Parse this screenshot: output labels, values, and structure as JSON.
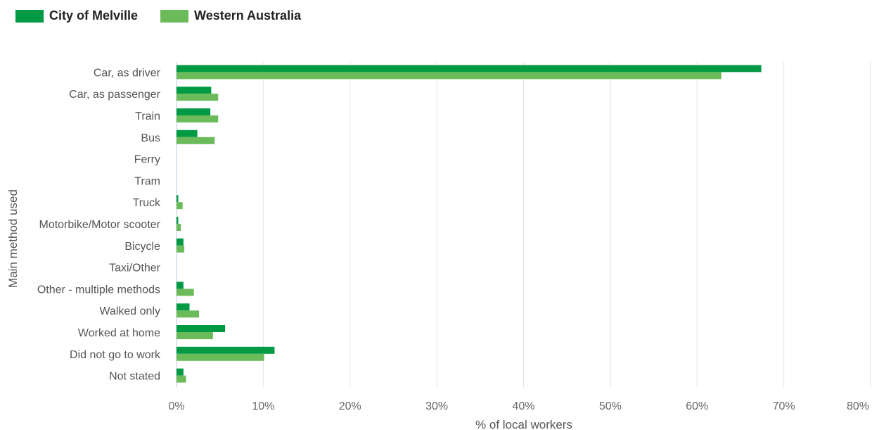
{
  "legend": {
    "items": [
      {
        "label": "City of Melville",
        "color": "#009a44"
      },
      {
        "label": "Western Australia",
        "color": "#6cbb5a"
      }
    ]
  },
  "chart_data": {
    "type": "bar",
    "orientation": "horizontal",
    "categories": [
      "Car, as driver",
      "Car, as passenger",
      "Train",
      "Bus",
      "Ferry",
      "Tram",
      "Truck",
      "Motorbike/Motor scooter",
      "Bicycle",
      "Taxi/Other",
      "Other - multiple methods",
      "Walked only",
      "Worked at home",
      "Did not go to work",
      "Not stated"
    ],
    "series": [
      {
        "name": "City of Melville",
        "color": "#009a44",
        "values": [
          67.4,
          4.0,
          3.9,
          2.4,
          0.0,
          0.0,
          0.2,
          0.2,
          0.8,
          0.0,
          0.8,
          1.5,
          5.6,
          11.3,
          0.8
        ]
      },
      {
        "name": "Western Australia",
        "color": "#6cbb5a",
        "values": [
          62.8,
          4.8,
          4.8,
          4.4,
          0.0,
          0.0,
          0.7,
          0.5,
          0.9,
          0.0,
          2.0,
          2.6,
          4.2,
          10.1,
          1.1
        ]
      }
    ],
    "xlabel": "% of local workers",
    "ylabel": "Main method used",
    "xlim": [
      0,
      80
    ],
    "xticks": [
      0,
      10,
      20,
      30,
      40,
      50,
      60,
      70,
      80
    ],
    "tick_suffix": "%",
    "grid": true,
    "legend_position": "top-left"
  }
}
